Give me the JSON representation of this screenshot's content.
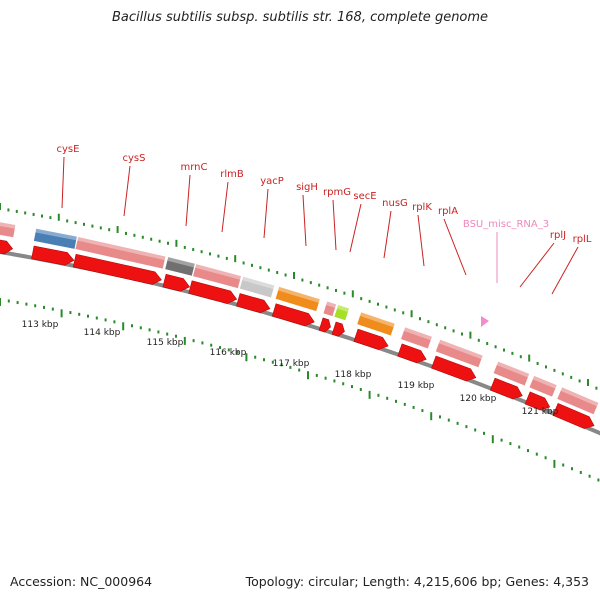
{
  "title": "Bacillus subtilis subsp. subtilis str. 168, complete genome",
  "footer": {
    "accession": "Accession: NC_000964",
    "summary": "Topology: circular; Length: 4,215,606 bp; Genes: 4,353"
  },
  "colors": {
    "cds": "#ee1111",
    "gene_band": "#e88a8a",
    "label": "#cc2222",
    "misc_label": "#ee88bb",
    "tick": "#2a8a2a",
    "backbone": "#888888",
    "band_blue": "#4a7fb5",
    "band_gray": "#707070",
    "band_lightgray": "#c8c8c8",
    "band_orange": "#f08c1c",
    "band_lime": "#a6e026",
    "band_pink": "#f28ccc"
  },
  "scale_labels": [
    "113 kbp",
    "114 kbp",
    "115 kbp",
    "116 kbp",
    "117 kbp",
    "118 kbp",
    "119 kbp",
    "120 kbp",
    "121 kbp"
  ],
  "gene_labels": [
    "cysE",
    "cysS",
    "mrnC",
    "rlmB",
    "yacP",
    "sigH",
    "rpmG",
    "secE",
    "nusG",
    "rplK",
    "rplA",
    "BSU_misc_RNA_3",
    "rplJ",
    "rplL"
  ]
}
